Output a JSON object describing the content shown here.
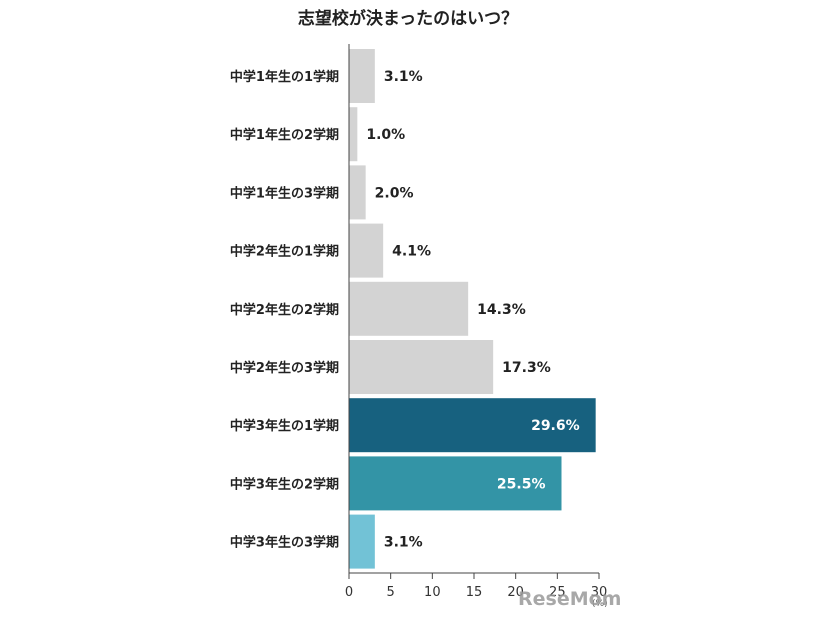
{
  "chart_data": {
    "type": "bar",
    "orientation": "horizontal",
    "title": "志望校が決まったのはいつ？",
    "categories": [
      "中学1年生の1学期",
      "中学1年生の2学期",
      "中学1年生の3学期",
      "中学2年生の1学期",
      "中学2年生の2学期",
      "中学2年生の3学期",
      "中学3年生の1学期",
      "中学3年生の2学期",
      "中学3年生の3学期"
    ],
    "values": [
      3.1,
      1.0,
      2.0,
      4.1,
      14.3,
      17.3,
      29.6,
      25.5,
      3.1
    ],
    "value_labels": [
      "3.1%",
      "1.0%",
      "2.0%",
      "4.1%",
      "14.3%",
      "17.3%",
      "29.6%",
      "25.5%",
      "3.1%"
    ],
    "bar_colors": [
      "#d3d3d3",
      "#d3d3d3",
      "#d3d3d3",
      "#d3d3d3",
      "#d3d3d3",
      "#d3d3d3",
      "#17617f",
      "#3394a6",
      "#72c2d6"
    ],
    "xlim": [
      0,
      30
    ],
    "x_ticks": [
      "0",
      "5",
      "10",
      "15",
      "20",
      "25",
      "30"
    ],
    "x_unit": "(%)",
    "xlabel": "",
    "ylabel": "",
    "grid": false,
    "legend": "none"
  },
  "watermark": "ReseMom"
}
